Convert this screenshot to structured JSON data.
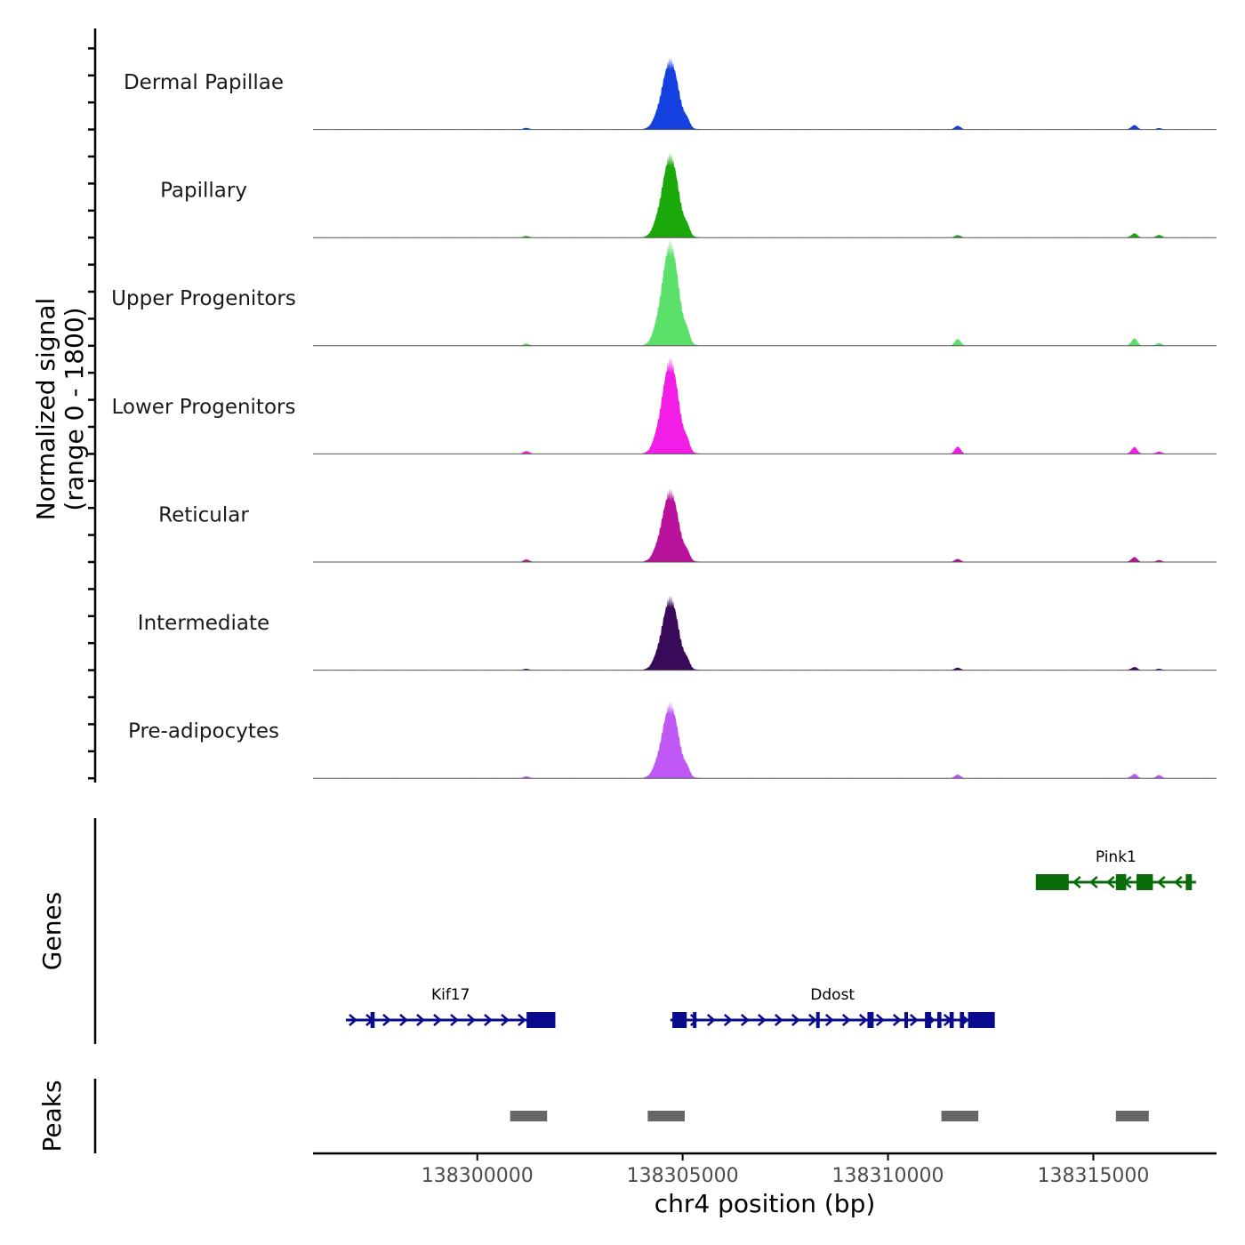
{
  "chart_data": {
    "type": "area",
    "title": "",
    "ylabel_line1": "Normalized signal",
    "ylabel_line2": "(range 0 - 1800)",
    "xlabel": "chr4 position (bp)",
    "xlim": [
      138296000,
      138318000
    ],
    "ylim": [
      0,
      1800
    ],
    "x_ticks": [
      138300000,
      138305000,
      138310000,
      138315000
    ],
    "x_tick_labels": [
      "138300000",
      "138305000",
      "138310000",
      "138315000"
    ],
    "tracks": [
      {
        "name": "Dermal Papillae",
        "color": "#1340de",
        "peak_value": 1200,
        "minor_peaks": [
          {
            "pos": 138301200,
            "value": 25
          },
          {
            "pos": 138311700,
            "value": 60
          },
          {
            "pos": 138316000,
            "value": 70
          },
          {
            "pos": 138316600,
            "value": 20
          }
        ]
      },
      {
        "name": "Papillary",
        "color": "#1aa80a",
        "peak_value": 1420,
        "minor_peaks": [
          {
            "pos": 138301200,
            "value": 25
          },
          {
            "pos": 138311700,
            "value": 40
          },
          {
            "pos": 138316000,
            "value": 70
          },
          {
            "pos": 138316600,
            "value": 40
          }
        ]
      },
      {
        "name": "Upper Progenitors",
        "color": "#5be06a",
        "peak_value": 1780,
        "minor_peaks": [
          {
            "pos": 138301200,
            "value": 35
          },
          {
            "pos": 138311700,
            "value": 110
          },
          {
            "pos": 138316000,
            "value": 120
          },
          {
            "pos": 138316600,
            "value": 40
          }
        ]
      },
      {
        "name": "Lower Progenitors",
        "color": "#f21ee6",
        "peak_value": 1620,
        "minor_peaks": [
          {
            "pos": 138301200,
            "value": 45
          },
          {
            "pos": 138311700,
            "value": 120
          },
          {
            "pos": 138316000,
            "value": 110
          },
          {
            "pos": 138316600,
            "value": 35
          }
        ]
      },
      {
        "name": "Reticular",
        "color": "#b8129c",
        "peak_value": 1230,
        "minor_peaks": [
          {
            "pos": 138301200,
            "value": 40
          },
          {
            "pos": 138311700,
            "value": 50
          },
          {
            "pos": 138316000,
            "value": 80
          },
          {
            "pos": 138316600,
            "value": 30
          }
        ]
      },
      {
        "name": "Intermediate",
        "color": "#3a0a5a",
        "peak_value": 1250,
        "minor_peaks": [
          {
            "pos": 138301200,
            "value": 20
          },
          {
            "pos": 138311700,
            "value": 40
          },
          {
            "pos": 138316000,
            "value": 50
          },
          {
            "pos": 138316600,
            "value": 20
          }
        ]
      },
      {
        "name": "Pre-adipocytes",
        "color": "#c058f5",
        "peak_value": 1280,
        "minor_peaks": [
          {
            "pos": 138301200,
            "value": 30
          },
          {
            "pos": 138311700,
            "value": 60
          },
          {
            "pos": 138316000,
            "value": 70
          },
          {
            "pos": 138316600,
            "value": 50
          }
        ]
      }
    ],
    "main_peak_position": 138304700,
    "genes_label": "Genes",
    "genes": [
      {
        "name": "Pink1",
        "strand": "-",
        "start": 138313600,
        "end": 138317500,
        "color": "#0a6b0a",
        "row": 1,
        "exons": [
          [
            138313600,
            138314400
          ],
          [
            138315550,
            138315800
          ],
          [
            138316050,
            138316450
          ],
          [
            138317250,
            138317400
          ]
        ]
      },
      {
        "name": "Kif17",
        "strand": "+",
        "start": 138296800,
        "end": 138301900,
        "color": "#0a0a8c",
        "row": 2,
        "exons": [
          [
            138297400,
            138297500
          ],
          [
            138301200,
            138301900
          ]
        ]
      },
      {
        "name": "Ddost",
        "strand": "+",
        "start": 138304700,
        "end": 138312600,
        "color": "#0a0a8c",
        "row": 2,
        "exons": [
          [
            138304750,
            138305100
          ],
          [
            138305250,
            138305330
          ],
          [
            138308250,
            138308330
          ],
          [
            138309500,
            138309650
          ],
          [
            138310400,
            138310480
          ],
          [
            138310900,
            138311050
          ],
          [
            138311200,
            138311300
          ],
          [
            138311500,
            138311600
          ],
          [
            138311750,
            138311850
          ],
          [
            138311950,
            138312600
          ]
        ]
      }
    ],
    "peaks_label": "Peaks",
    "peaks": [
      [
        138300800,
        138301700
      ],
      [
        138304150,
        138305050
      ],
      [
        138311300,
        138312200
      ],
      [
        138315550,
        138316350
      ]
    ],
    "peak_color": "#666666"
  }
}
